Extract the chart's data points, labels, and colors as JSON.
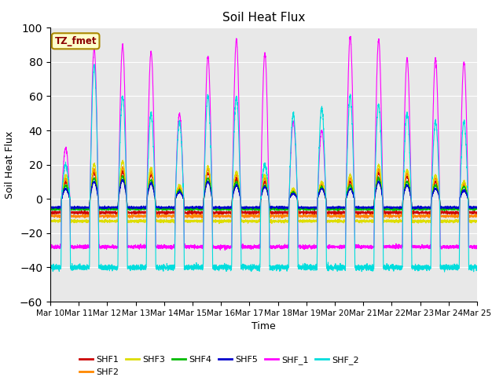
{
  "title": "Soil Heat Flux",
  "xlabel": "Time",
  "ylabel": "Soil Heat Flux",
  "ylim": [
    -60,
    100
  ],
  "yticks": [
    -60,
    -40,
    -20,
    0,
    20,
    40,
    60,
    80,
    100
  ],
  "xtick_labels": [
    "Mar 10",
    "Mar 11",
    "Mar 12",
    "Mar 13",
    "Mar 14",
    "Mar 15",
    "Mar 16",
    "Mar 17",
    "Mar 18",
    "Mar 19",
    "Mar 20",
    "Mar 21",
    "Mar 22",
    "Mar 23",
    "Mar 24",
    "Mar 25"
  ],
  "annotation_text": "TZ_fmet",
  "annotation_fg": "#8B0000",
  "annotation_bg": "#FFFFCC",
  "bg_color": "#E8E8E8",
  "series_colors": {
    "SHF1": "#CC0000",
    "SHF2": "#FF8800",
    "SHF3": "#DDDD00",
    "SHF4": "#00BB00",
    "SHF5": "#0000CC",
    "SHF_1": "#FF00FF",
    "SHF_2": "#00DDDD"
  },
  "n_days": 15,
  "pts_per_day": 288
}
